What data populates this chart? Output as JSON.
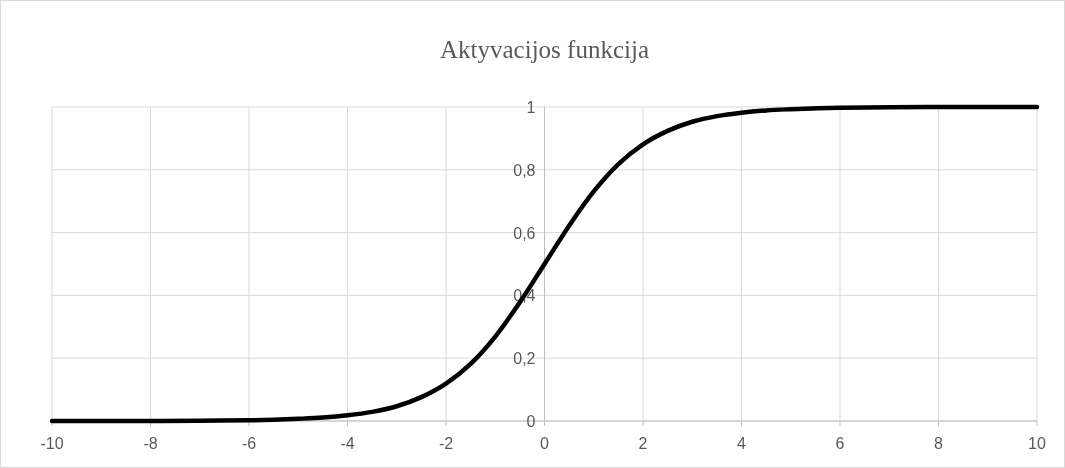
{
  "chart_data": {
    "type": "line",
    "title": "Aktyvacijos funkcija",
    "x": [
      -10,
      -9,
      -8,
      -7,
      -6,
      -5,
      -4.5,
      -4,
      -3.5,
      -3,
      -2.5,
      -2,
      -1.5,
      -1,
      -0.5,
      0,
      0.5,
      1,
      1.5,
      2,
      2.5,
      3,
      3.5,
      4,
      4.5,
      5,
      6,
      7,
      8,
      9,
      10
    ],
    "series": [
      {
        "color": "#000000",
        "values": [
          0,
          0,
          0,
          0.001,
          0.002,
          0.007,
          0.011,
          0.018,
          0.029,
          0.047,
          0.076,
          0.119,
          0.182,
          0.269,
          0.378,
          0.5,
          0.622,
          0.731,
          0.818,
          0.881,
          0.924,
          0.953,
          0.971,
          0.982,
          0.989,
          0.993,
          0.998,
          0.999,
          1,
          1,
          1
        ]
      }
    ],
    "xlim": [
      -10,
      10
    ],
    "xticks": [
      -10,
      -8,
      -6,
      -4,
      -2,
      0,
      2,
      4,
      6,
      8,
      10
    ],
    "ylim": [
      0,
      1
    ],
    "yticks": [
      0,
      {
        "value": 0.2,
        "label": "0,2"
      },
      {
        "value": 0.4,
        "label": "0,4"
      },
      {
        "value": 0.6,
        "label": "0,6"
      },
      {
        "value": 0.8,
        "label": "0,8"
      },
      1
    ],
    "grid": true,
    "marker": "none",
    "line_style": "solid"
  }
}
